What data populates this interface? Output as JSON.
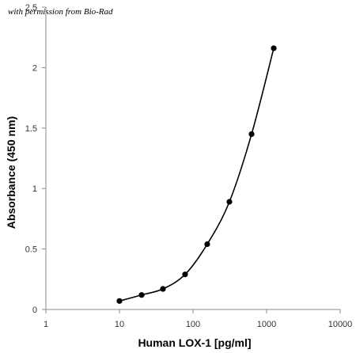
{
  "watermark": "with permission from Bio-Rad",
  "chart_data": {
    "type": "line",
    "title": "",
    "xlabel": "Human LOX-1 [pg/ml]",
    "ylabel": "Absorbance (450 nm)",
    "x_scale": "log",
    "xlim": [
      1,
      10000
    ],
    "ylim": [
      0,
      2.5
    ],
    "x_ticks": [
      "1",
      "10",
      "100",
      "1000",
      "10000"
    ],
    "y_ticks": [
      "0",
      "0.5",
      "1",
      "1.5",
      "2",
      "2.5"
    ],
    "grid": false,
    "legend": "none",
    "series": [
      {
        "x": [
          10,
          20,
          39,
          78,
          156,
          312,
          625,
          1250
        ],
        "y": [
          0.07,
          0.12,
          0.17,
          0.29,
          0.54,
          0.89,
          1.45,
          2.16
        ]
      }
    ],
    "colors": {
      "line": "#000000",
      "marker": "#000000",
      "axis": "#888888"
    }
  }
}
